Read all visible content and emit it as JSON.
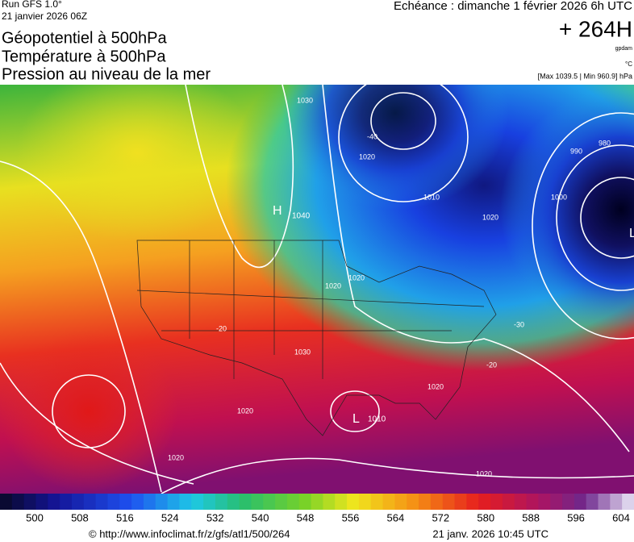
{
  "header": {
    "run": "Run GFS 1.0°",
    "date": "21 janvier 2026 06Z",
    "titles": [
      "Géopotentiel à 500hPa",
      "Température à 500hPa",
      "Pression au niveau de la mer"
    ],
    "echeance": "Echéance : dimanche 1 février 2026 6h UTC",
    "offset": "+ 264H",
    "unit_geo": "gpdam",
    "unit_temp": "°C",
    "range": "[Max 1039.5 | Min 960.9] hPa"
  },
  "map": {
    "labels": [
      "H",
      "1040",
      "L",
      "1010",
      "L",
      "1030",
      "1020",
      "1010",
      "1020",
      "1000",
      "990",
      "980",
      "1020",
      "1020",
      "1030",
      "1020",
      "1020",
      "1020",
      "1020",
      "-20",
      "-30",
      "-20",
      "-40"
    ]
  },
  "scale": {
    "ticks": [
      500,
      508,
      516,
      524,
      532,
      540,
      548,
      556,
      564,
      572,
      580,
      588,
      596,
      604
    ]
  },
  "footer": {
    "url": "© http://www.infoclimat.fr/z/gfs/atl1/500/264",
    "stamp": "21 janv. 2026 10:45 UTC"
  }
}
